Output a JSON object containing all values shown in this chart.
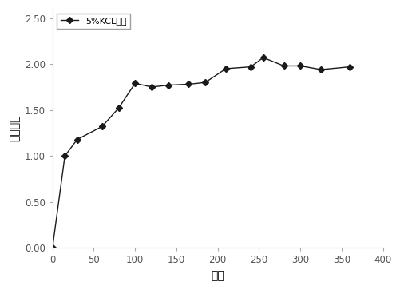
{
  "x": [
    0,
    15,
    30,
    60,
    80,
    100,
    120,
    140,
    165,
    185,
    210,
    240,
    255,
    280,
    300,
    325,
    360
  ],
  "y": [
    0.0,
    1.0,
    1.18,
    1.32,
    1.52,
    1.79,
    1.75,
    1.77,
    1.78,
    1.8,
    1.95,
    1.97,
    2.07,
    1.98,
    1.98,
    1.94,
    1.97
  ],
  "xlabel": "时间",
  "ylabel": "渗入速度",
  "xlim": [
    0,
    400
  ],
  "ylim": [
    0.0,
    2.6
  ],
  "xticks": [
    0,
    50,
    100,
    150,
    200,
    250,
    300,
    350,
    400
  ],
  "yticks": [
    0.0,
    0.5,
    1.0,
    1.5,
    2.0,
    2.5
  ],
  "legend_label": "5%KCL溶液",
  "line_color": "#1a1a1a",
  "marker": "D",
  "markersize": 4,
  "linewidth": 1.0,
  "figsize": [
    5.02,
    3.63
  ],
  "dpi": 100,
  "spine_color": "#aaaaaa",
  "tick_color": "#aaaaaa",
  "tick_label_color": "#555555",
  "bg_color": "#ffffff"
}
